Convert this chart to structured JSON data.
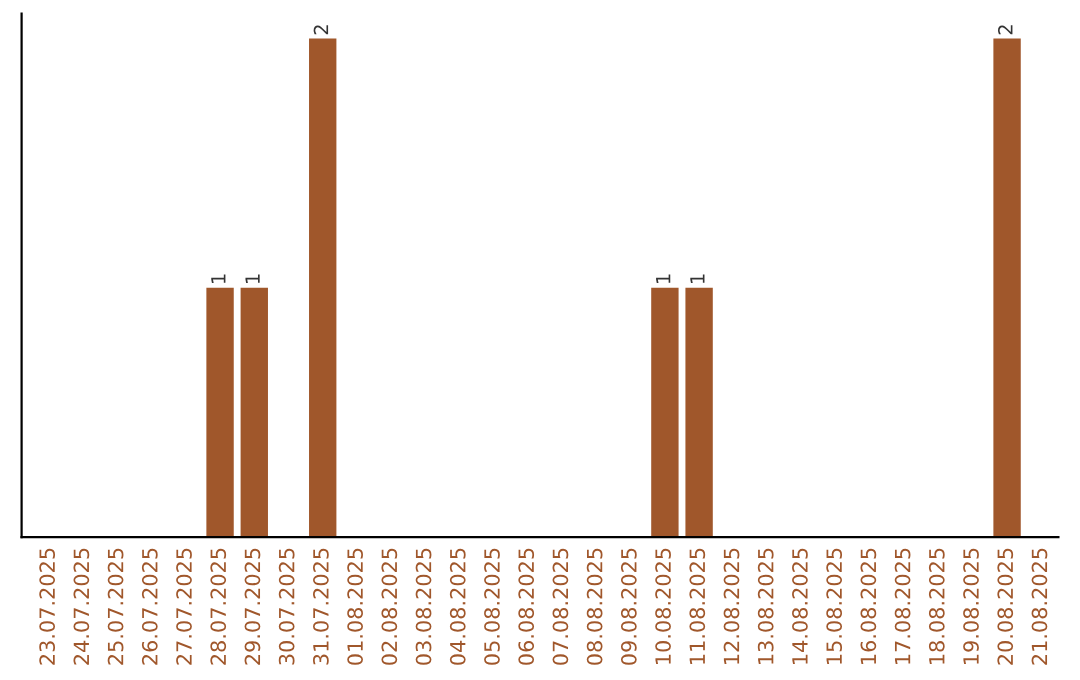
{
  "chart_data": {
    "type": "bar",
    "categories": [
      "23.07.2025",
      "24.07.2025",
      "25.07.2025",
      "26.07.2025",
      "27.07.2025",
      "28.07.2025",
      "29.07.2025",
      "30.07.2025",
      "31.07.2025",
      "01.08.2025",
      "02.08.2025",
      "03.08.2025",
      "04.08.2025",
      "05.08.2025",
      "06.08.2025",
      "07.08.2025",
      "08.08.2025",
      "09.08.2025",
      "10.08.2025",
      "11.08.2025",
      "12.08.2025",
      "13.08.2025",
      "14.08.2025",
      "15.08.2025",
      "16.08.2025",
      "17.08.2025",
      "18.08.2025",
      "19.08.2025",
      "20.08.2025",
      "21.08.2025"
    ],
    "values": [
      0,
      0,
      0,
      0,
      0,
      1,
      1,
      0,
      2,
      0,
      0,
      0,
      0,
      0,
      0,
      0,
      0,
      0,
      1,
      1,
      0,
      0,
      0,
      0,
      0,
      0,
      0,
      0,
      2,
      0
    ],
    "value_labels": [
      null,
      null,
      null,
      null,
      null,
      "1",
      "1",
      null,
      "2",
      null,
      null,
      null,
      null,
      null,
      null,
      null,
      null,
      null,
      "1",
      "1",
      null,
      null,
      null,
      null,
      null,
      null,
      null,
      null,
      "2",
      null
    ],
    "color": "#a0572b",
    "tick_labels": "x",
    "grid": false,
    "legend": false
  }
}
